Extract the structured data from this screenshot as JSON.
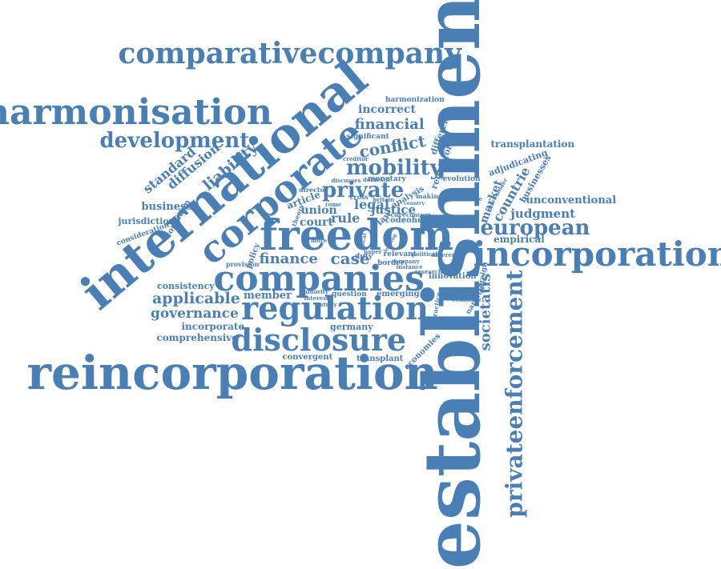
{
  "color": "#4a7fb5",
  "words": [
    {
      "text": "establishment"
    },
    {
      "text": "international"
    },
    {
      "text": "reincorporation"
    },
    {
      "text": "freedom"
    },
    {
      "text": "corporate"
    },
    {
      "text": "companies"
    },
    {
      "text": "incorporation"
    },
    {
      "text": "harmonisation"
    },
    {
      "text": "comparativecompany"
    },
    {
      "text": "disclosure"
    },
    {
      "text": "regulation"
    },
    {
      "text": "privateenforcement"
    },
    {
      "text": "development"
    },
    {
      "text": "mobility"
    },
    {
      "text": "european"
    },
    {
      "text": "private"
    },
    {
      "text": "financial"
    },
    {
      "text": "conflict"
    },
    {
      "text": "finance"
    },
    {
      "text": "case"
    },
    {
      "text": "applicable"
    },
    {
      "text": "governance"
    },
    {
      "text": "liability"
    },
    {
      "text": "diffusion"
    },
    {
      "text": "standard"
    },
    {
      "text": "societatis"
    },
    {
      "text": "incorrect"
    },
    {
      "text": "legal"
    },
    {
      "text": "justice"
    },
    {
      "text": "rule"
    },
    {
      "text": "court"
    },
    {
      "text": "union"
    },
    {
      "text": "judgment"
    },
    {
      "text": "countrie"
    },
    {
      "text": "market"
    },
    {
      "text": "transplantation"
    },
    {
      "text": "unconventional"
    },
    {
      "text": "business"
    },
    {
      "text": "businesses"
    },
    {
      "text": "adjudicating"
    },
    {
      "text": "empirical"
    },
    {
      "text": "member"
    },
    {
      "text": "incorporate"
    },
    {
      "text": "comprehensive"
    },
    {
      "text": "germany"
    },
    {
      "text": "consistency"
    },
    {
      "text": "jurisdiction"
    },
    {
      "text": "convergent"
    },
    {
      "text": "transplant"
    },
    {
      "text": "economies"
    },
    {
      "text": "innovation"
    },
    {
      "text": "emerging"
    },
    {
      "text": "question"
    },
    {
      "text": "relevant"
    },
    {
      "text": "duty"
    },
    {
      "text": "border"
    },
    {
      "text": "harmonization"
    },
    {
      "text": "difference"
    },
    {
      "text": "regulatory"
    },
    {
      "text": "evolution"
    },
    {
      "text": "significant"
    },
    {
      "text": "monetary"
    },
    {
      "text": "analysis"
    },
    {
      "text": "making"
    },
    {
      "text": "article"
    },
    {
      "text": "director"
    },
    {
      "text": "coherence"
    },
    {
      "text": "code"
    },
    {
      "text": "care"
    },
    {
      "text": "law"
    },
    {
      "text": "cross"
    },
    {
      "text": "britain"
    },
    {
      "text": "domestic"
    },
    {
      "text": "discusses"
    },
    {
      "text": "creditor"
    },
    {
      "text": "policy"
    },
    {
      "text": "condition"
    },
    {
      "text": "consideration"
    },
    {
      "text": "provision"
    },
    {
      "text": "foreign"
    },
    {
      "text": "narrative"
    },
    {
      "text": "practice"
    },
    {
      "text": "shareholder"
    },
    {
      "text": "challenge"
    },
    {
      "text": "minimum"
    },
    {
      "text": "concern"
    },
    {
      "text": "theory"
    },
    {
      "text": "different"
    },
    {
      "text": "company"
    },
    {
      "text": "minority"
    },
    {
      "text": "interest"
    },
    {
      "text": "research"
    },
    {
      "text": "economic"
    },
    {
      "text": "study"
    },
    {
      "text": "instance"
    },
    {
      "text": "political"
    },
    {
      "text": "paper"
    },
    {
      "text": "rome"
    },
    {
      "text": "local"
    },
    {
      "text": "more"
    },
    {
      "text": "lending"
    },
    {
      "text": "country"
    }
  ]
}
